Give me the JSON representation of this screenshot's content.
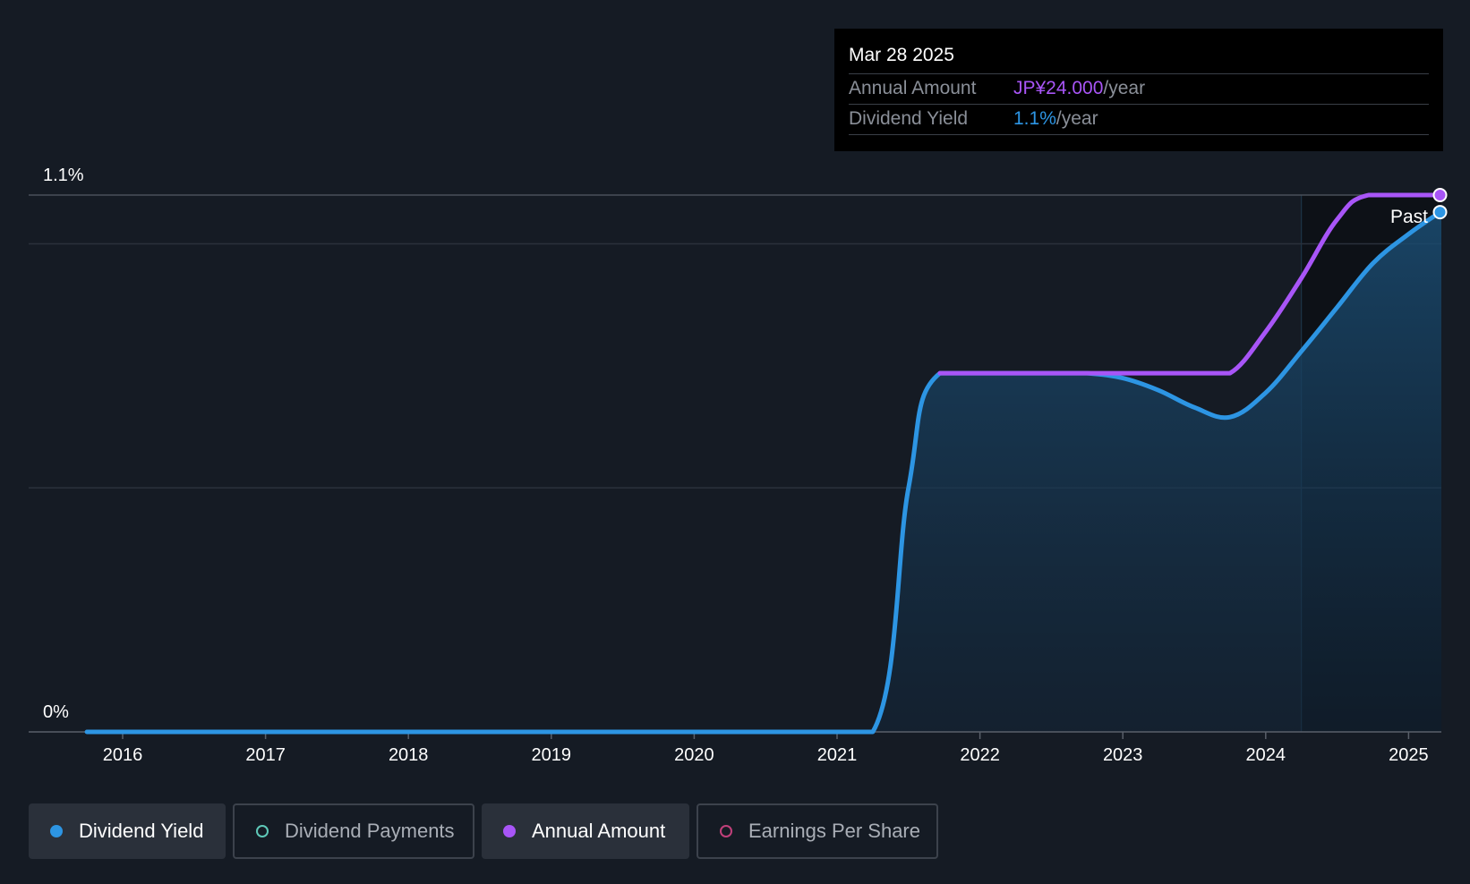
{
  "tooltip": {
    "date": "Mar 28 2025",
    "rows": [
      {
        "label": "Annual Amount",
        "value": "JP¥24.000",
        "unit": "/year",
        "color": "#a855f7"
      },
      {
        "label": "Dividend Yield",
        "value": "1.1%",
        "unit": "/year",
        "color": "#2d95e3"
      }
    ]
  },
  "past_label": "Past",
  "legend": [
    {
      "label": "Dividend Yield",
      "color": "#2d95e3",
      "active": true
    },
    {
      "label": "Dividend Payments",
      "color": "#5ec8b8",
      "active": false
    },
    {
      "label": "Annual Amount",
      "color": "#a855f7",
      "active": true
    },
    {
      "label": "Earnings Per Share",
      "color": "#c0407a",
      "active": false
    }
  ],
  "chart_data": {
    "type": "line",
    "title": "",
    "xlabel": "",
    "ylabel": "",
    "y_tick_labels": [
      "1.1%",
      "0%"
    ],
    "ylim": [
      0,
      1.1
    ],
    "xlim": [
      2015.35,
      2025.24
    ],
    "x_ticks": [
      2016,
      2017,
      2018,
      2019,
      2020,
      2021,
      2022,
      2023,
      2024,
      2025
    ],
    "x_tick_labels": [
      "2016",
      "2017",
      "2018",
      "2019",
      "2020",
      "2021",
      "2022",
      "2023",
      "2024",
      "2025"
    ],
    "gridlines_y": [
      0.5,
      1.0,
      1.1
    ],
    "past_region_start": 2024.25,
    "series": [
      {
        "name": "Dividend Yield",
        "color": "#2d95e3",
        "fill": true,
        "points": [
          [
            2015.75,
            0
          ],
          [
            2020.5,
            0
          ],
          [
            2021.25,
            0
          ],
          [
            2021.5,
            0.5
          ],
          [
            2021.72,
            0.735
          ],
          [
            2022.5,
            0.735
          ],
          [
            2022.75,
            0.735
          ],
          [
            2023.0,
            0.725
          ],
          [
            2023.25,
            0.7
          ],
          [
            2023.5,
            0.665
          ],
          [
            2023.75,
            0.645
          ],
          [
            2024.0,
            0.695
          ],
          [
            2024.25,
            0.78
          ],
          [
            2024.5,
            0.87
          ],
          [
            2024.75,
            0.96
          ],
          [
            2025.0,
            1.02
          ],
          [
            2025.22,
            1.065
          ]
        ]
      },
      {
        "name": "Annual Amount",
        "color": "#a855f7",
        "fill": false,
        "points": [
          [
            2021.72,
            0.735
          ],
          [
            2022.5,
            0.735
          ],
          [
            2023.0,
            0.735
          ],
          [
            2023.5,
            0.735
          ],
          [
            2023.75,
            0.735
          ],
          [
            2024.0,
            0.82
          ],
          [
            2024.25,
            0.93
          ],
          [
            2024.5,
            1.05
          ],
          [
            2024.72,
            1.1
          ],
          [
            2025.22,
            1.1
          ]
        ]
      }
    ]
  }
}
